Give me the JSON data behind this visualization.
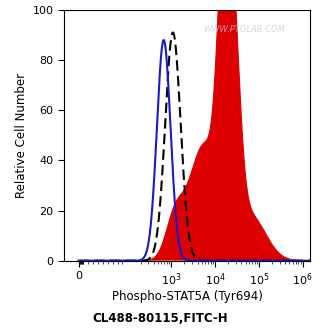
{
  "title": "",
  "xlabel": "Phospho-STAT5A (Tyr694)",
  "xlabel2": "CL488-80115,FITC-H",
  "ylabel": "Relative Cell Number",
  "watermark": "WWW.PTGLAB.COM",
  "ylim": [
    0,
    100
  ],
  "yticks": [
    0,
    20,
    40,
    60,
    80,
    100
  ],
  "background_color": "#ffffff",
  "blue_color": "#1a1acc",
  "dashed_color": "#000000",
  "red_color": "#dd0000"
}
